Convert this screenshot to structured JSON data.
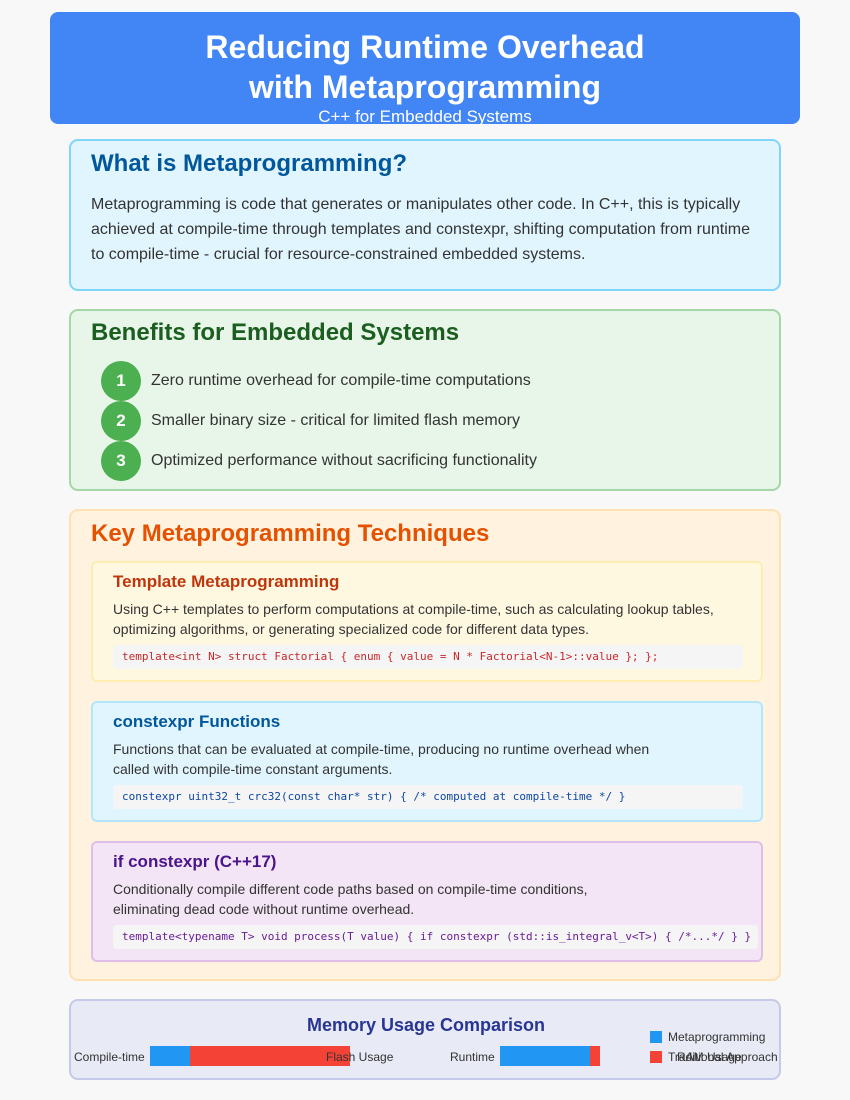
{
  "header": {
    "title": "Reducing Runtime Overhead\nwith Metaprogramming",
    "subtitle": "C++ for Embedded Systems"
  },
  "what": {
    "heading": "What is Metaprogramming?",
    "body": "Metaprogramming is code that generates or manipulates other code. In C++, this is typically achieved at compile-time through templates and constexpr, shifting computation from runtime to compile-time - crucial for resource-constrained embedded systems."
  },
  "benefits": {
    "heading": "Benefits for Embedded Systems",
    "items": [
      {
        "num": "1",
        "text": "Zero runtime overhead for compile-time computations"
      },
      {
        "num": "2",
        "text": "Smaller binary size - critical for limited flash memory"
      },
      {
        "num": "3",
        "text": "Optimized performance without sacrificing functionality"
      }
    ]
  },
  "techniques": {
    "heading": "Key Metaprogramming Techniques",
    "items": [
      {
        "title": "Template Metaprogramming",
        "desc": "Using C++ templates to perform computations at compile-time, such as calculating lookup tables, optimizing algorithms, or generating specialized code for different data types.",
        "code": "template<int N> struct Factorial { enum { value = N * Factorial<N-1>::value }; };"
      },
      {
        "title": "constexpr Functions",
        "desc": "Functions that can be evaluated at compile-time, producing no runtime overhead when called with compile-time constant arguments.",
        "code": "constexpr uint32_t crc32(const char* str) { /* computed at compile-time */ }"
      },
      {
        "title": "if constexpr (C++17)",
        "desc": "Conditionally compile different code paths based on compile-time conditions, eliminating dead code without runtime overhead.",
        "code": "template<typename T> void process(T value) { if constexpr (std::is_integral_v<T>) { /*...*/ } }"
      }
    ]
  },
  "memory": {
    "title": "Memory Usage Comparison",
    "labels": {
      "compile_time": "Compile-time",
      "flash_usage": "Flash Usage",
      "runtime": "Runtime",
      "ram_usage": "RAM Usage"
    },
    "colors": {
      "metaprogramming": "#2196f3",
      "traditional": "#f44336"
    },
    "legend": {
      "metaprogramming": "Metaprogramming",
      "traditional": "Traditional Approach"
    },
    "bars": {
      "compile_time": {
        "metaprogramming": 0.2,
        "traditional": 0.8
      },
      "runtime": {
        "metaprogramming": 0.9,
        "traditional": 0.1
      }
    }
  }
}
